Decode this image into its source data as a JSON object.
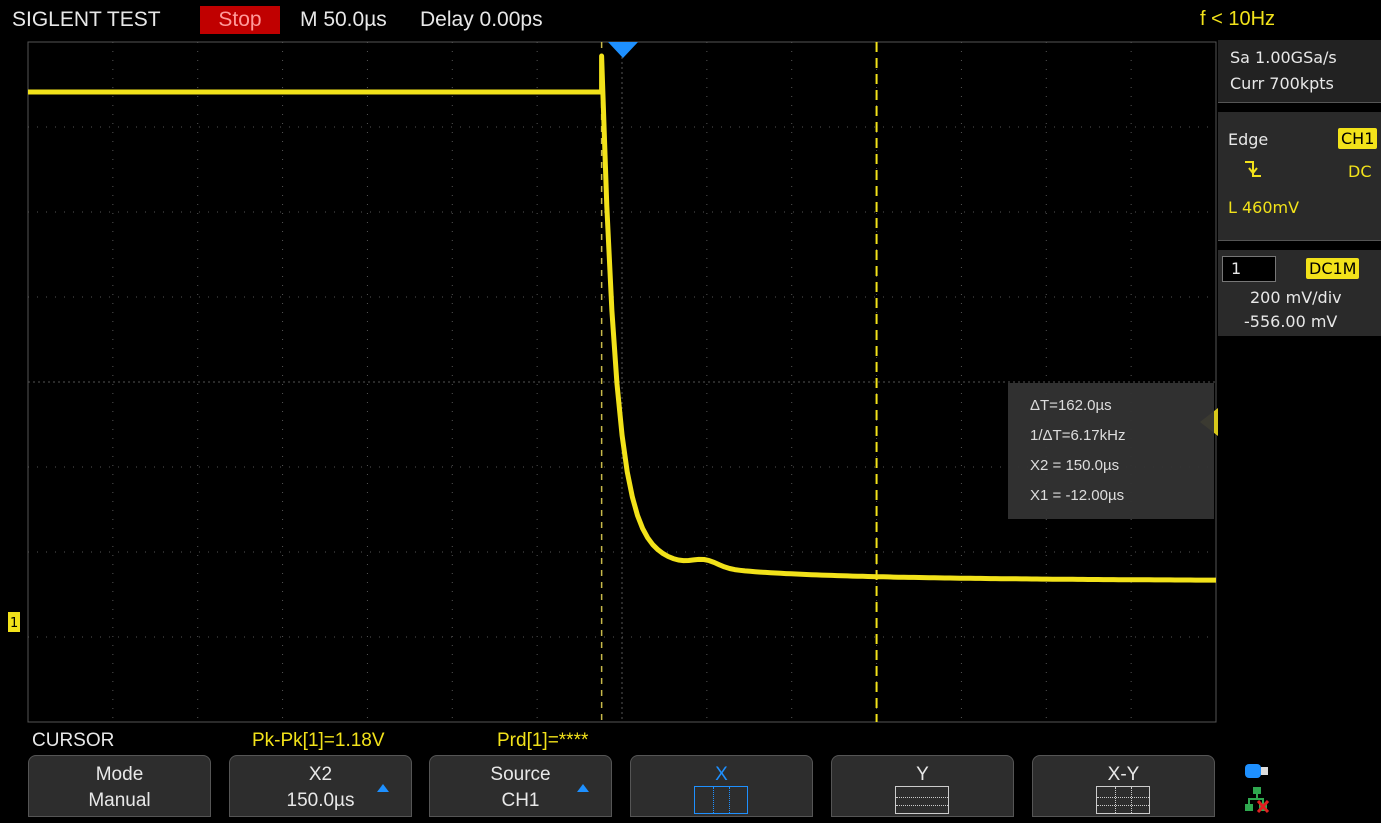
{
  "header": {
    "title": "SIGLENT TEST",
    "run_state": "Stop",
    "timebase": "M 50.0µs",
    "delay": "Delay 0.00ps",
    "frequency": "f < 10Hz"
  },
  "acquisition": {
    "sample_rate": "Sa 1.00GSa/s",
    "memory_depth": "Curr 700kpts"
  },
  "trigger": {
    "type": "Edge",
    "source": "CH1",
    "slope_icon": "falling-edge-icon",
    "coupling": "DC",
    "level": "L  460mV"
  },
  "channel": {
    "number": "1",
    "coupling": "DC1M",
    "scale": "200 mV/div",
    "offset": "-556.00 mV",
    "marker": "1"
  },
  "cursor_readout": {
    "delta_t": "ΔT=162.0µs",
    "inv_delta_t": "1/ΔT=6.17kHz",
    "x2": "X2 = 150.0µs",
    "x1": "X1 = -12.00µs"
  },
  "status_line": {
    "menu": "CURSOR",
    "pkpk": "Pk-Pk[1]=1.18V",
    "prd": "Prd[1]=****"
  },
  "softkeys": [
    {
      "top": "Mode",
      "bottom": "Manual"
    },
    {
      "top": "X2",
      "bottom": "150.0µs"
    },
    {
      "top": "Source",
      "bottom": "CH1"
    },
    {
      "top": "X",
      "bottom": ""
    },
    {
      "top": "Y",
      "bottom": ""
    },
    {
      "top": "X-Y",
      "bottom": ""
    }
  ],
  "status_icons": [
    "usb-storage-icon",
    "network-disconnected-icon"
  ],
  "colors": {
    "trace": "#f2e21a",
    "run_state_bg": "#c00000",
    "trigger_marker": "#1e90ff",
    "grid": "#555555"
  },
  "waveform": {
    "time_per_div_us": 50,
    "volts_per_div": 0.2,
    "trigger_time_us": 0,
    "cursor_x1_us": -12.0,
    "cursor_x2_us": 150.0,
    "high_level_v": 1.18,
    "settle_level_v": 0.0
  }
}
